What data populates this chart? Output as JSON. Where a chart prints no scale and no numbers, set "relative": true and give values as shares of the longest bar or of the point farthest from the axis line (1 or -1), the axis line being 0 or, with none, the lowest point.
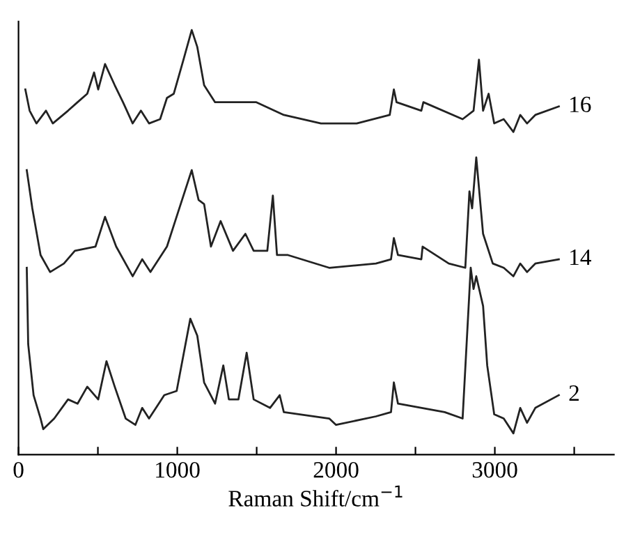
{
  "chart_data": {
    "type": "line",
    "xlabel": "Raman Shift/cm$^{−1}$",
    "relative": true,
    "xlim": [
      0,
      3750
    ],
    "xticks": [
      0,
      {
        "value": 500,
        "label": null
      },
      1000,
      {
        "value": 1500,
        "label": null
      },
      2000,
      {
        "value": 2500,
        "label": null
      },
      3000,
      {
        "value": 3500,
        "label": null
      }
    ],
    "tick_labels": "x",
    "grid": false,
    "legend": false,
    "marker": "none",
    "line_style": "solid",
    "series": [
      {
        "name": "16",
        "color": "#222222",
        "x": [
          43,
          70,
          113,
          173,
          216,
          312,
          372,
          433,
          476,
          502,
          545,
          606,
          658,
          719,
          771,
          822,
          892,
          935,
          978,
          1039,
          1091,
          1126,
          1169,
          1238,
          1411,
          1498,
          1671,
          1905,
          2130,
          2338,
          2364,
          2381,
          2537,
          2550,
          2797,
          2866,
          2900,
          2926,
          2961,
          2996,
          3056,
          3117,
          3160,
          3203,
          3255,
          3403
        ],
        "values": [
          0.86,
          0.81,
          0.78,
          0.81,
          0.78,
          0.81,
          0.83,
          0.85,
          0.9,
          0.86,
          0.92,
          0.87,
          0.83,
          0.78,
          0.81,
          0.78,
          0.79,
          0.84,
          0.85,
          0.93,
          1.0,
          0.96,
          0.87,
          0.83,
          0.83,
          0.83,
          0.8,
          0.78,
          0.78,
          0.8,
          0.86,
          0.83,
          0.81,
          0.83,
          0.79,
          0.81,
          0.93,
          0.81,
          0.85,
          0.78,
          0.79,
          0.76,
          0.8,
          0.78,
          0.8,
          0.82
        ]
      },
      {
        "name": "14",
        "color": "#222222",
        "x": [
          52,
          87,
          139,
          199,
          286,
          355,
          485,
          545,
          615,
          719,
          779,
          831,
          935,
          1004,
          1091,
          1134,
          1169,
          1212,
          1273,
          1351,
          1429,
          1481,
          1567,
          1602,
          1628,
          1697,
          1957,
          2251,
          2346,
          2364,
          2390,
          2537,
          2545,
          2710,
          2814,
          2840,
          2857,
          2883,
          2926,
          2987,
          3056,
          3117,
          3160,
          3203,
          3255,
          3403
        ],
        "values": [
          0.67,
          0.58,
          0.47,
          0.43,
          0.45,
          0.48,
          0.49,
          0.56,
          0.49,
          0.42,
          0.46,
          0.43,
          0.49,
          0.57,
          0.67,
          0.6,
          0.59,
          0.49,
          0.55,
          0.48,
          0.52,
          0.48,
          0.48,
          0.61,
          0.47,
          0.47,
          0.44,
          0.45,
          0.46,
          0.51,
          0.47,
          0.46,
          0.49,
          0.45,
          0.44,
          0.62,
          0.58,
          0.7,
          0.52,
          0.45,
          0.44,
          0.42,
          0.45,
          0.43,
          0.45,
          0.46
        ]
      },
      {
        "name": "2",
        "color": "#222222",
        "x": [
          52,
          61,
          95,
          139,
          156,
          225,
          312,
          372,
          433,
          502,
          554,
          606,
          675,
          736,
          779,
          822,
          866,
          918,
          996,
          1082,
          1126,
          1169,
          1238,
          1290,
          1325,
          1385,
          1437,
          1481,
          1584,
          1645,
          1671,
          1957,
          2000,
          2251,
          2346,
          2364,
          2390,
          2684,
          2797,
          2848,
          2866,
          2883,
          2926,
          2952,
          2996,
          3056,
          3117,
          3160,
          3203,
          3255,
          3403
        ],
        "values": [
          0.44,
          0.26,
          0.14,
          0.085,
          0.06,
          0.085,
          0.13,
          0.12,
          0.16,
          0.13,
          0.22,
          0.16,
          0.085,
          0.07,
          0.11,
          0.085,
          0.11,
          0.14,
          0.15,
          0.32,
          0.28,
          0.17,
          0.12,
          0.21,
          0.13,
          0.13,
          0.24,
          0.13,
          0.11,
          0.14,
          0.1,
          0.085,
          0.07,
          0.09,
          0.1,
          0.17,
          0.12,
          0.1,
          0.085,
          0.44,
          0.39,
          0.42,
          0.35,
          0.21,
          0.095,
          0.085,
          0.05,
          0.11,
          0.075,
          0.11,
          0.14
        ]
      }
    ]
  }
}
